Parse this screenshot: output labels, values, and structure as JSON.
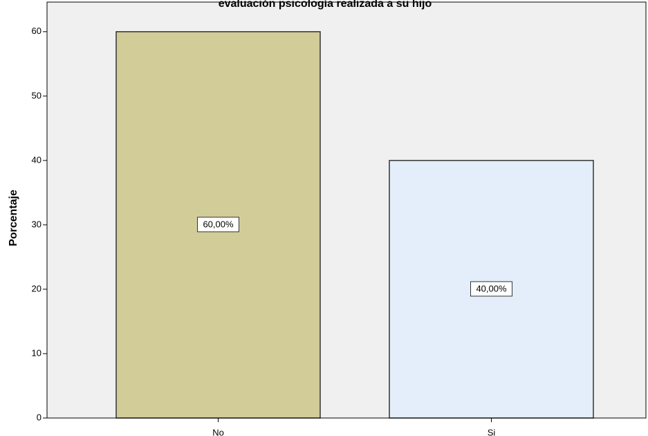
{
  "chart_data": {
    "type": "bar",
    "title": "evaluación psicología realizada a su hijo",
    "y_label": "Porcentaje",
    "categories": [
      "No",
      "Si"
    ],
    "values": [
      60,
      40
    ],
    "value_labels": [
      "60,00%",
      "40,00%"
    ],
    "colors": [
      "#d2cc98",
      "#e3eefa"
    ],
    "ylim": [
      0,
      64.6
    ],
    "yticks": [
      0,
      10,
      20,
      30,
      40,
      50,
      60
    ]
  }
}
